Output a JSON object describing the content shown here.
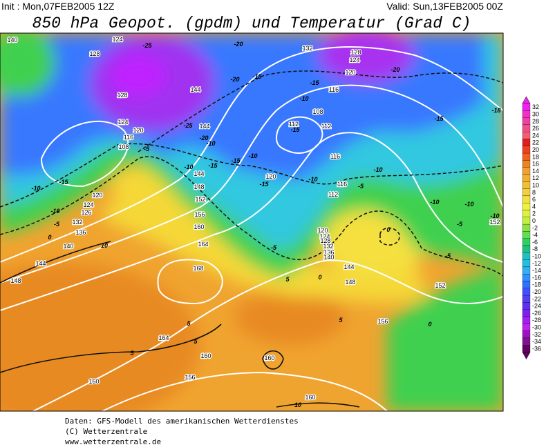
{
  "header": {
    "init": "Init : Mon,07FEB2005 12Z",
    "valid": "Valid: Sun,13FEB2005 00Z",
    "title": "850 hPa Geopot. (gpdm) und Temperatur (Grad C)"
  },
  "map": {
    "contour_labels": [
      "140",
      "124",
      "-25",
      "-20",
      "132",
      "128",
      "124",
      "-20",
      "128",
      "120",
      "-20",
      "-15",
      "-15",
      "116",
      "144",
      "128",
      "-10",
      "108",
      "-15",
      "-18",
      "124",
      "-25",
      "144",
      "112",
      "112",
      "-15",
      "120",
      "116",
      "-20",
      "108",
      "-5",
      "-10",
      "116",
      "-10",
      "-15",
      "-15",
      "-10",
      "-10",
      "144",
      "120",
      "-15",
      "-10",
      "116",
      "-5",
      "112",
      "-10",
      "-15",
      "148",
      "120",
      "124",
      "152",
      "-10",
      "-10",
      "-10",
      "152",
      "126",
      "-5",
      "-5",
      "132",
      "156",
      "-10",
      "160",
      "136",
      "0",
      "120",
      "124",
      "128",
      "132",
      "136",
      "140",
      "0",
      "164",
      "140",
      "-5",
      "10",
      "144",
      "144",
      "168",
      "-5",
      "148",
      "5",
      "0",
      "148",
      "152",
      "156",
      "5",
      "5",
      "0",
      "164",
      "5",
      "5",
      "160",
      "160",
      "156",
      "160",
      "160",
      "10"
    ]
  },
  "colorbar": {
    "labels": [
      32,
      30,
      28,
      26,
      24,
      22,
      20,
      18,
      16,
      14,
      12,
      10,
      8,
      6,
      4,
      2,
      0,
      -2,
      -4,
      -6,
      -8,
      -10,
      -12,
      -14,
      -16,
      -18,
      -20,
      -22,
      -24,
      -26,
      -28,
      -30,
      -32,
      -34,
      -36
    ],
    "colors": [
      "#f020f0",
      "#f030c8",
      "#f040a8",
      "#f05088",
      "#f06070",
      "#e02020",
      "#f04020",
      "#f06020",
      "#f08020",
      "#f0a030",
      "#f0b030",
      "#f0c030",
      "#f0d040",
      "#f0e040",
      "#f0f040",
      "#e0f040",
      "#c0f040",
      "#90e040",
      "#60e050",
      "#30d060",
      "#20c080",
      "#20c0c0",
      "#20c0e0",
      "#30b0f0",
      "#3090ff",
      "#3070ff",
      "#4050ff",
      "#5040f0",
      "#6030f0",
      "#8020f0",
      "#a020f0",
      "#c020f0",
      "#a010c0",
      "#801090",
      "#600060"
    ]
  },
  "footer": {
    "lines": [
      "Daten: GFS-Modell des amerikanischen Wetterdienstes",
      "(C) Wetterzentrale",
      "www.wetterzentrale.de"
    ]
  }
}
